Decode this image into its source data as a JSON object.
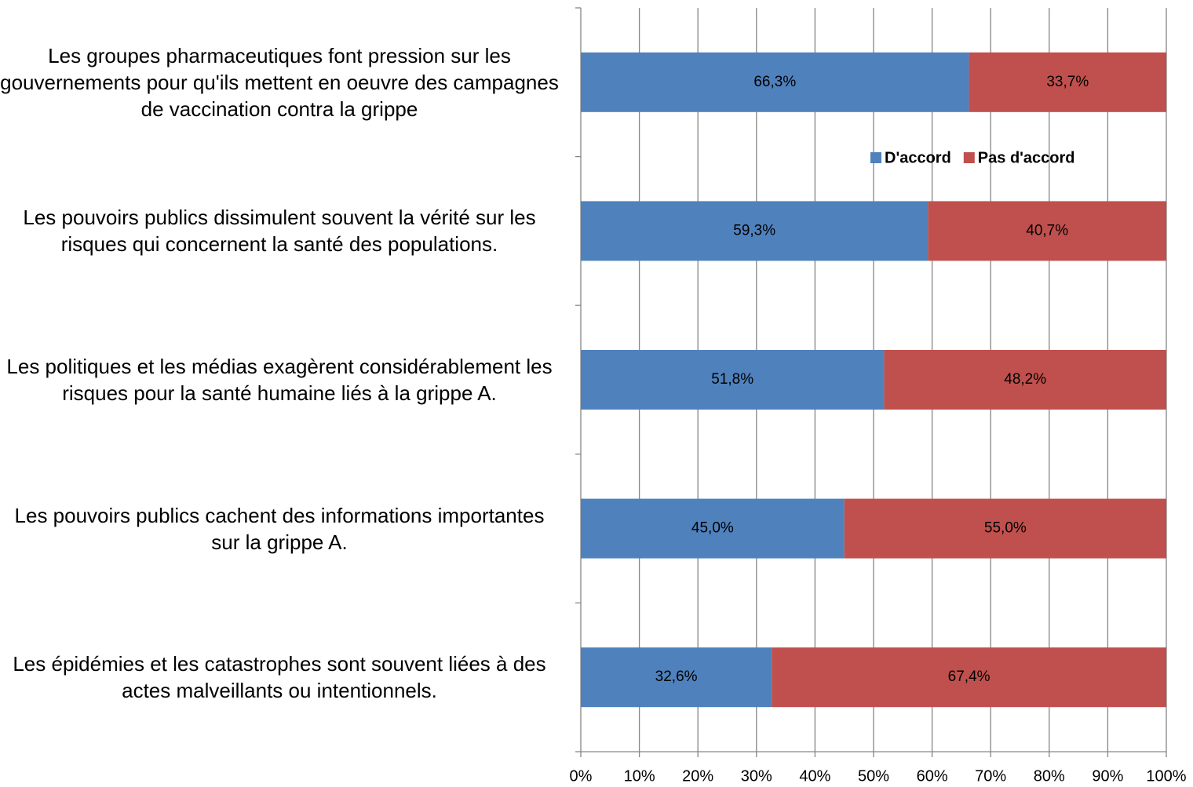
{
  "chart_data": {
    "type": "stacked_barh",
    "categories": [
      "Les groupes pharmaceutiques font pression sur les gouvernements pour qu'ils mettent en oeuvre des campagnes de vaccination contra la grippe",
      "Les pouvoirs publics dissimulent souvent la vérité sur les risques qui concernent la santé des populations.",
      "Les politiques et les médias exagèrent considérablement les risques pour la santé humaine liés à la grippe A.",
      "Les pouvoirs publics cachent des informations importantes sur la grippe A.",
      "Les épidémies et les catastrophes sont souvent liées à des actes malveillants ou intentionnels."
    ],
    "series": [
      {
        "name": "D'accord",
        "color": "#4f81bd",
        "values": [
          66.3,
          59.3,
          51.8,
          45.0,
          32.6
        ],
        "value_labels": [
          "66,3%",
          "59,3%",
          "51,8%",
          "45,0%",
          "32,6%"
        ]
      },
      {
        "name": "Pas d'accord",
        "color": "#c0504d",
        "values": [
          33.7,
          40.7,
          48.2,
          55.0,
          67.4
        ],
        "value_labels": [
          "33,7%",
          "40,7%",
          "48,2%",
          "55,0%",
          "67,4%"
        ]
      }
    ],
    "xlim": [
      0,
      100
    ],
    "xticks": [
      {
        "value": 0,
        "label": "0%"
      },
      {
        "value": 10,
        "label": "10%"
      },
      {
        "value": 20,
        "label": "20%"
      },
      {
        "value": 30,
        "label": "30%"
      },
      {
        "value": 40,
        "label": "40%"
      },
      {
        "value": 50,
        "label": "50%"
      },
      {
        "value": 60,
        "label": "60%"
      },
      {
        "value": 70,
        "label": "70%"
      },
      {
        "value": 80,
        "label": "80%"
      },
      {
        "value": 90,
        "label": "90%"
      },
      {
        "value": 100,
        "label": "100%"
      }
    ],
    "grid": true
  }
}
